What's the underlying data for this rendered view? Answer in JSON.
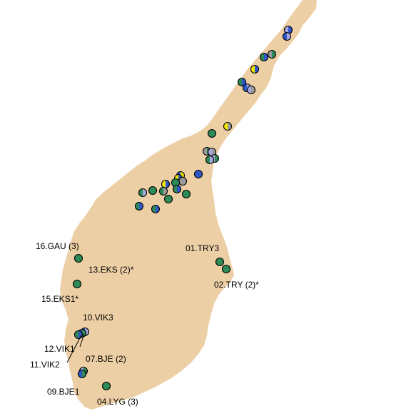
{
  "colors": {
    "land": "#EDCFA5",
    "blue": "#2F57C8",
    "green": "#2E8B57",
    "lavender": "#A8A8E0",
    "yellow": "#F2E600",
    "gray": "#9A9A9A",
    "outline": "#000000"
  },
  "site_labels": [
    {
      "id": "16",
      "text": "16.GAU (3)"
    },
    {
      "id": "13",
      "text": "13.EKS (2)*"
    },
    {
      "id": "15",
      "text": "15.EKS1*"
    },
    {
      "id": "10",
      "text": "10.VIK3"
    },
    {
      "id": "12",
      "text": "12.VIK1"
    },
    {
      "id": "11",
      "text": "11.VIK2"
    },
    {
      "id": "07",
      "text": "07.BJE (2)"
    },
    {
      "id": "09",
      "text": "09.BJE1"
    },
    {
      "id": "04",
      "text": "04.LYG (3)"
    },
    {
      "id": "01",
      "text": "01.TRY3"
    },
    {
      "id": "02",
      "text": "02.TRY (2)*"
    }
  ]
}
